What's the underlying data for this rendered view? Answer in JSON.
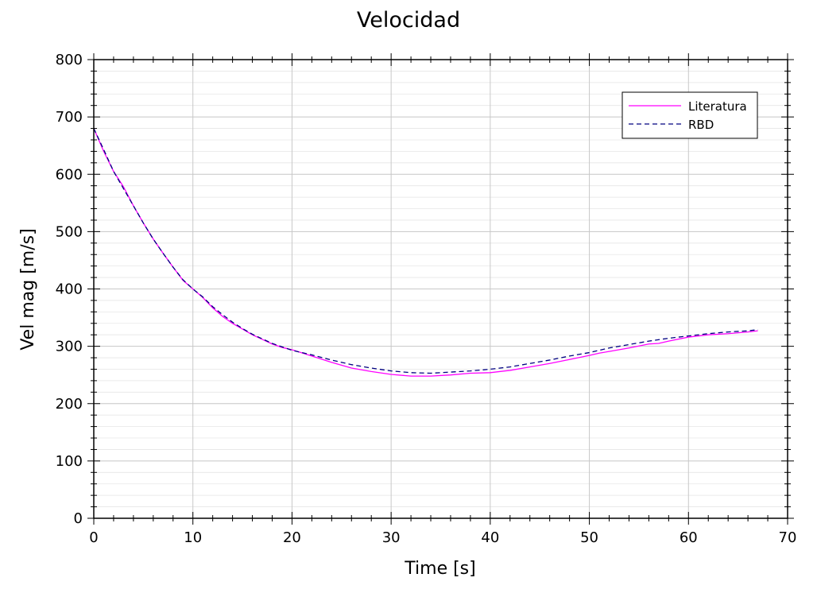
{
  "chart_data": {
    "type": "line",
    "title": "Velocidad",
    "xlabel": "Time [s]",
    "ylabel": "Vel mag [m/s]",
    "xlim": [
      0,
      70
    ],
    "ylim": [
      0,
      800
    ],
    "xticks": [
      0,
      10,
      20,
      30,
      40,
      50,
      60,
      70
    ],
    "yticks": [
      0,
      100,
      200,
      300,
      400,
      500,
      600,
      700,
      800
    ],
    "grid": true,
    "legend_position": "top-right",
    "series": [
      {
        "name": "Literatura",
        "color": "#ff00ff",
        "style": "solid",
        "x": [
          0,
          1,
          2,
          3,
          4,
          5,
          6,
          7,
          8,
          9,
          10,
          11,
          12,
          13,
          14,
          15,
          16,
          17,
          18,
          19,
          20,
          22,
          24,
          26,
          28,
          30,
          32,
          34,
          36,
          38,
          40,
          42,
          44,
          46,
          48,
          50,
          51,
          52,
          54,
          56,
          57,
          58,
          60,
          62,
          64,
          66,
          67
        ],
        "y": [
          680,
          640,
          605,
          578,
          545,
          515,
          487,
          462,
          438,
          415,
          400,
          385,
          367,
          352,
          340,
          330,
          320,
          312,
          304,
          298,
          294,
          283,
          272,
          262,
          256,
          251,
          248,
          248,
          250,
          253,
          254,
          258,
          264,
          270,
          277,
          284,
          288,
          291,
          297,
          304,
          305,
          309,
          316,
          320,
          322,
          325,
          327
        ]
      },
      {
        "name": "RBD",
        "color": "#000080",
        "style": "dashed",
        "x": [
          0,
          1,
          2,
          3,
          4,
          5,
          6,
          7,
          8,
          9,
          10,
          11,
          12,
          13,
          14,
          15,
          16,
          17,
          18,
          19,
          20,
          22,
          24,
          26,
          28,
          30,
          32,
          34,
          36,
          38,
          40,
          42,
          44,
          46,
          48,
          50,
          52,
          54,
          56,
          58,
          60,
          62,
          64,
          66,
          67
        ],
        "y": [
          680,
          643,
          605,
          575,
          545,
          515,
          487,
          462,
          438,
          416,
          400,
          386,
          369,
          355,
          342,
          331,
          321,
          313,
          305,
          299,
          293,
          285,
          276,
          268,
          262,
          257,
          254,
          253,
          255,
          257,
          260,
          264,
          270,
          276,
          283,
          289,
          297,
          303,
          309,
          314,
          318,
          322,
          325,
          327,
          329
        ]
      }
    ]
  }
}
